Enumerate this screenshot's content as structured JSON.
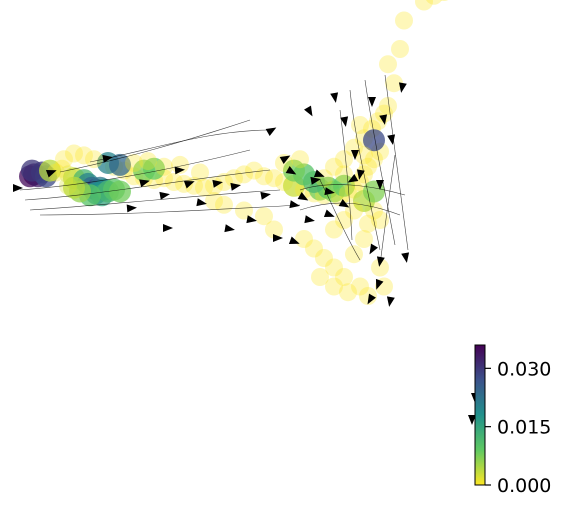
{
  "chart_data": {
    "type": "scatter",
    "title": "",
    "xlabel": "",
    "ylabel": "",
    "axes_visible": false,
    "overlay": "velocity streamlines with arrowheads",
    "colorbar": {
      "colormap": "viridis_r",
      "range": [
        0.0,
        0.036
      ],
      "ticks": [
        {
          "value": 0.0,
          "label": "0.000"
        },
        {
          "value": 0.015,
          "label": "0.015"
        },
        {
          "value": 0.03,
          "label": "0.030"
        }
      ]
    },
    "points": [
      [
        0.03,
        0.13,
        0.035
      ],
      [
        0.05,
        0.14,
        0.035
      ],
      [
        0.07,
        0.13,
        0.033
      ],
      [
        0.09,
        0.15,
        0.03
      ],
      [
        0.11,
        0.13,
        0.028
      ],
      [
        0.04,
        0.16,
        0.03
      ],
      [
        0.13,
        0.16,
        0.004
      ],
      [
        0.16,
        0.15,
        0.0
      ],
      [
        0.19,
        0.17,
        0.0
      ],
      [
        0.22,
        0.14,
        0.002
      ],
      [
        0.25,
        0.12,
        0.003
      ],
      [
        0.28,
        0.1,
        0.0
      ],
      [
        0.3,
        0.11,
        0.012
      ],
      [
        0.32,
        0.09,
        0.02
      ],
      [
        0.34,
        0.07,
        0.024
      ],
      [
        0.36,
        0.06,
        0.028
      ],
      [
        0.38,
        0.07,
        0.022
      ],
      [
        0.4,
        0.06,
        0.018
      ],
      [
        0.36,
        0.04,
        0.018
      ],
      [
        0.39,
        0.03,
        0.015
      ],
      [
        0.42,
        0.05,
        0.012
      ],
      [
        0.45,
        0.06,
        0.01
      ],
      [
        0.48,
        0.05,
        0.008
      ],
      [
        0.33,
        0.03,
        0.01
      ],
      [
        0.28,
        0.05,
        0.006
      ],
      [
        0.25,
        0.07,
        0.004
      ],
      [
        0.22,
        0.08,
        0.002
      ],
      [
        0.45,
        0.18,
        0.001
      ],
      [
        0.5,
        0.16,
        0.0
      ],
      [
        0.55,
        0.13,
        0.0
      ],
      [
        0.6,
        0.12,
        0.0
      ],
      [
        0.65,
        0.11,
        0.0
      ],
      [
        0.7,
        0.12,
        0.0
      ],
      [
        0.75,
        0.1,
        0.0
      ],
      [
        0.8,
        0.09,
        0.0
      ],
      [
        0.85,
        0.08,
        0.0
      ],
      [
        0.9,
        0.07,
        0.0
      ],
      [
        0.95,
        0.08,
        0.0
      ],
      [
        0.6,
        0.16,
        0.008
      ],
      [
        0.65,
        0.17,
        0.009
      ],
      [
        0.42,
        0.2,
        0.02
      ],
      [
        0.48,
        0.19,
        0.024
      ],
      [
        0.35,
        0.22,
        0.0
      ],
      [
        0.3,
        0.24,
        0.0
      ],
      [
        0.25,
        0.25,
        0.0
      ],
      [
        0.2,
        0.22,
        0.0
      ],
      [
        0.55,
        0.2,
        0.0
      ],
      [
        0.62,
        0.21,
        0.0
      ],
      [
        0.7,
        0.18,
        0.0
      ],
      [
        0.78,
        0.19,
        0.0
      ],
      [
        0.88,
        0.15,
        0.0
      ],
      [
        1.0,
        0.1,
        0.0
      ],
      [
        1.05,
        0.12,
        0.0
      ],
      [
        1.1,
        0.14,
        0.0
      ],
      [
        1.15,
        0.16,
        0.0
      ],
      [
        1.2,
        0.13,
        0.0
      ],
      [
        1.25,
        0.12,
        0.0
      ],
      [
        1.3,
        0.1,
        0.0
      ],
      [
        1.35,
        0.08,
        0.003
      ],
      [
        1.4,
        0.06,
        0.0
      ],
      [
        1.45,
        0.04,
        0.0
      ],
      [
        1.48,
        0.06,
        0.008
      ],
      [
        1.5,
        0.03,
        0.0
      ],
      [
        1.52,
        0.07,
        0.01
      ],
      [
        1.55,
        0.05,
        0.007
      ],
      [
        1.58,
        0.02,
        0.0
      ],
      [
        1.6,
        0.08,
        0.009
      ],
      [
        1.62,
        0.04,
        0.0
      ],
      [
        1.65,
        0.06,
        0.0
      ],
      [
        1.68,
        0.1,
        0.0
      ],
      [
        1.7,
        0.14,
        0.0
      ],
      [
        1.72,
        0.18,
        0.0
      ],
      [
        1.75,
        0.22,
        0.0
      ],
      [
        1.78,
        0.26,
        0.0
      ],
      [
        1.6,
        0.22,
        0.0
      ],
      [
        1.55,
        0.18,
        0.0
      ],
      [
        1.65,
        0.28,
        0.0
      ],
      [
        1.7,
        0.33,
        0.0
      ],
      [
        1.74,
        0.38,
        0.0
      ],
      [
        1.77,
        0.42,
        0.0
      ],
      [
        1.8,
        0.46,
        0.0
      ],
      [
        1.82,
        0.5,
        0.0
      ],
      [
        1.75,
        0.32,
        0.028
      ],
      [
        1.68,
        0.4,
        0.0
      ],
      [
        1.45,
        0.1,
        0.012
      ],
      [
        1.4,
        0.14,
        0.01
      ],
      [
        1.35,
        0.16,
        0.008
      ],
      [
        1.3,
        0.2,
        0.0
      ],
      [
        1.38,
        0.22,
        0.0
      ],
      [
        1.5,
        0.12,
        0.0
      ],
      [
        1.6,
        0.14,
        0.0
      ],
      [
        1.7,
        0.24,
        0.0
      ],
      [
        1.4,
        -0.2,
        0.0
      ],
      [
        1.45,
        -0.25,
        0.0
      ],
      [
        1.5,
        -0.3,
        0.0
      ],
      [
        1.55,
        -0.35,
        0.0
      ],
      [
        1.6,
        -0.4,
        0.0
      ],
      [
        1.65,
        -0.28,
        0.0
      ],
      [
        1.7,
        -0.2,
        0.0
      ],
      [
        1.72,
        -0.12,
        0.0
      ],
      [
        1.75,
        -0.05,
        0.0
      ],
      [
        1.78,
        -0.35,
        0.0
      ],
      [
        1.8,
        -0.45,
        0.0
      ],
      [
        1.68,
        -0.45,
        0.0
      ],
      [
        1.72,
        -0.5,
        0.0
      ],
      [
        1.55,
        -0.45,
        0.0
      ],
      [
        1.48,
        -0.4,
        0.0
      ],
      [
        1.62,
        -0.48,
        0.0
      ],
      [
        1.7,
        0.0,
        0.004
      ],
      [
        1.65,
        -0.05,
        0.0
      ],
      [
        1.6,
        -0.1,
        0.0
      ],
      [
        1.55,
        -0.15,
        0.0
      ],
      [
        1.75,
        0.05,
        0.007
      ],
      [
        1.78,
        -0.1,
        0.0
      ],
      [
        1.2,
        -0.08,
        0.0
      ],
      [
        1.1,
        -0.05,
        0.0
      ],
      [
        1.0,
        -0.02,
        0.0
      ],
      [
        0.95,
        0.0,
        0.0
      ],
      [
        1.25,
        -0.15,
        0.0
      ],
      [
        1.85,
        0.62,
        0.0
      ],
      [
        1.82,
        0.72,
        0.0
      ],
      [
        1.88,
        0.8,
        0.0
      ],
      [
        1.9,
        0.95,
        0.0
      ],
      [
        2.0,
        1.05,
        0.0
      ],
      [
        2.05,
        1.08,
        0.0
      ],
      [
        2.1,
        1.1,
        0.0
      ],
      [
        2.15,
        1.12,
        0.0
      ],
      [
        2.18,
        1.18,
        0.0
      ],
      [
        2.2,
        1.22,
        0.02
      ],
      [
        2.22,
        1.25,
        0.03
      ],
      [
        2.24,
        1.28,
        0.0
      ]
    ]
  }
}
